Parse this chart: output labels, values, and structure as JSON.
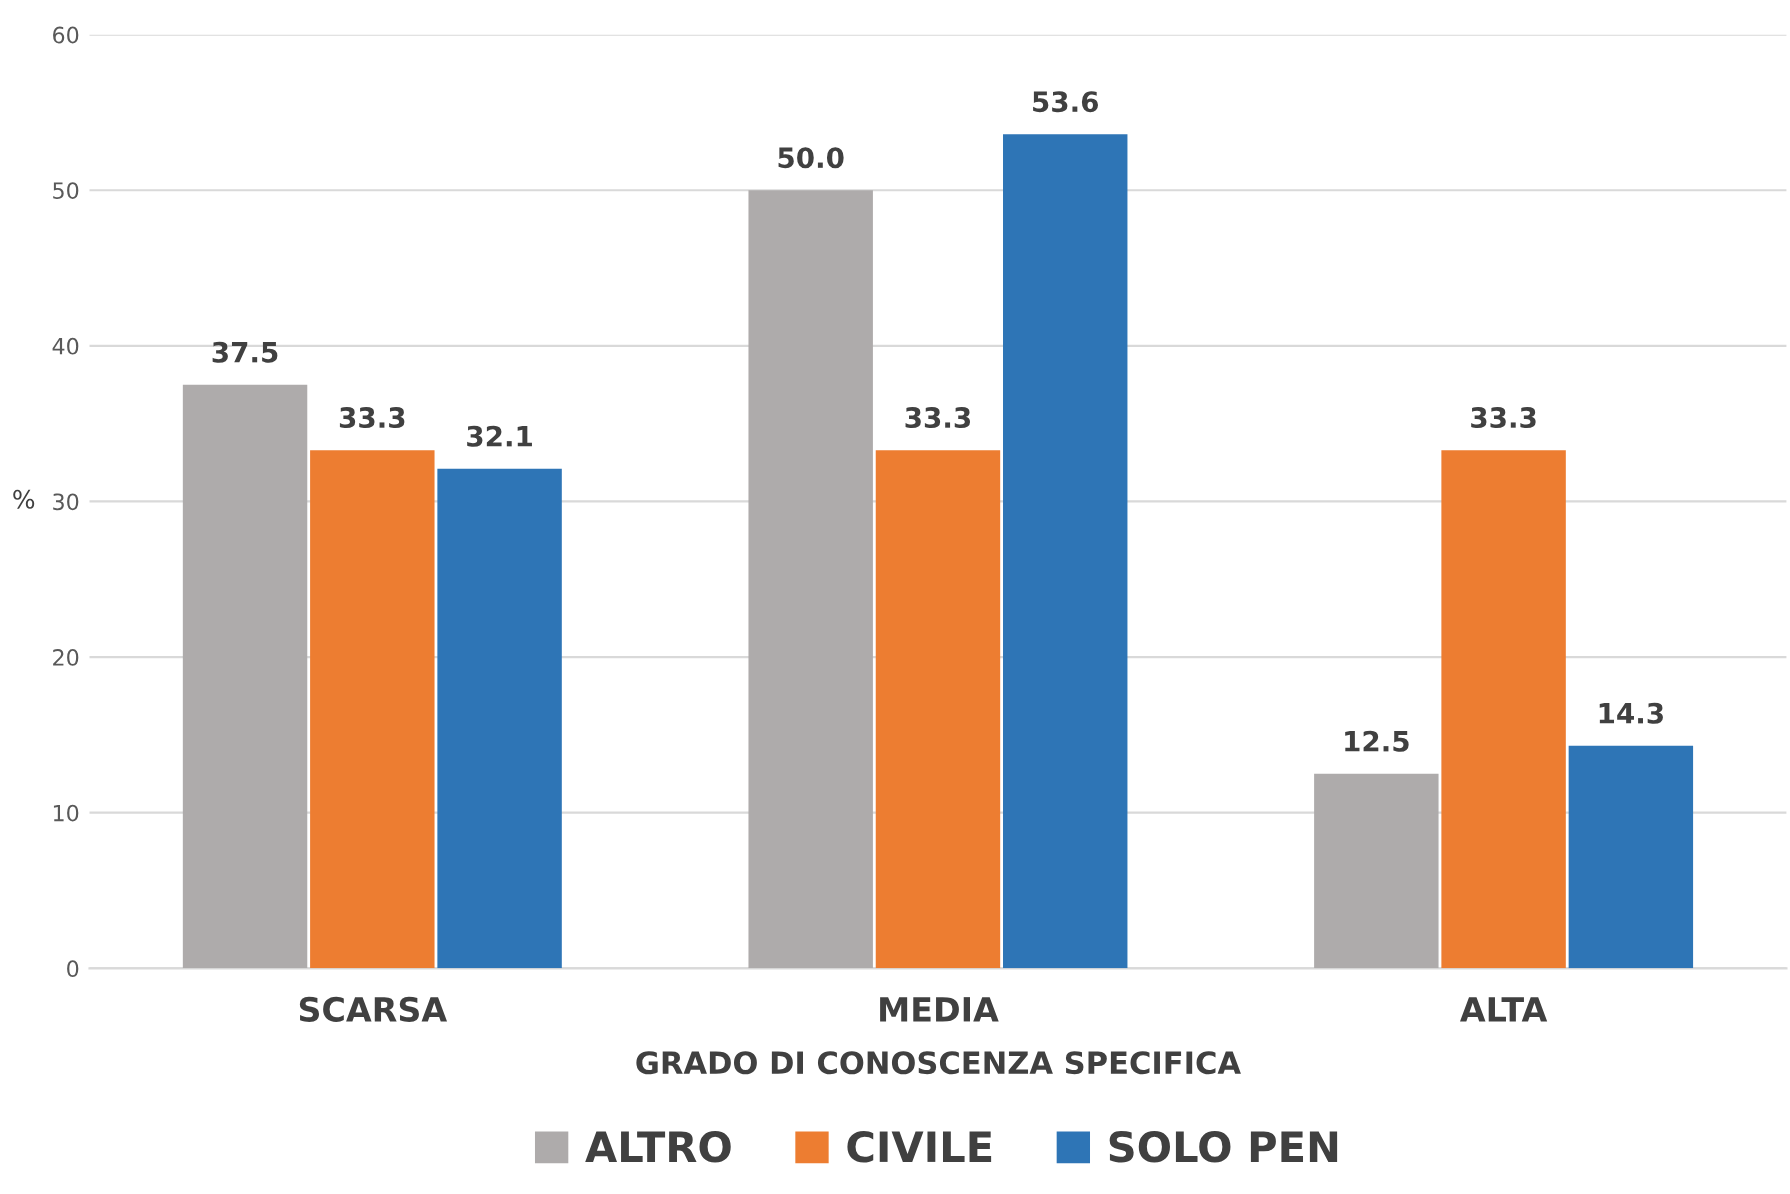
{
  "chart_data": {
    "type": "bar",
    "xlabel": "GRADO DI CONOSCENZA SPECIFICA",
    "ylabel": "%",
    "categories": [
      "SCARSA",
      "MEDIA",
      "ALTA"
    ],
    "series": [
      {
        "name": "ALTRO",
        "color": "#aeabab",
        "values": [
          37.5,
          50.0,
          12.5
        ],
        "value_labels": [
          "37.5",
          "50.0",
          "12.5"
        ]
      },
      {
        "name": "CIVILE",
        "color": "#ed7d31",
        "values": [
          33.3,
          33.3,
          33.3
        ],
        "value_labels": [
          "33.3",
          "33.3",
          "33.3"
        ]
      },
      {
        "name": "SOLO PEN",
        "color": "#2e75b6",
        "values": [
          32.1,
          53.6,
          14.3
        ],
        "value_labels": [
          "32.1",
          "53.6",
          "14.3"
        ]
      }
    ],
    "ylim": [
      0,
      60
    ],
    "yticks": [
      0,
      10,
      20,
      30,
      40,
      50,
      60
    ],
    "grid": "y",
    "legend": "bottom"
  }
}
